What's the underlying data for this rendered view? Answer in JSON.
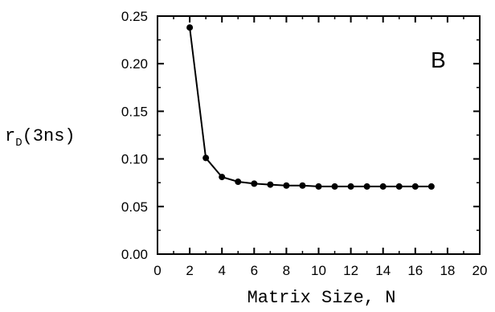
{
  "chart_data": {
    "type": "line",
    "title": "",
    "panel_label": "B",
    "xlabel": "Matrix Size, N",
    "ylabel_main": "r",
    "ylabel_sub": "D",
    "ylabel_rest": "(3ns)",
    "xlim": [
      0,
      20
    ],
    "ylim": [
      0,
      0.25
    ],
    "xticks": [
      0,
      2,
      4,
      6,
      8,
      10,
      12,
      14,
      16,
      18,
      20
    ],
    "yticks": [
      "0.00",
      "0.05",
      "0.10",
      "0.15",
      "0.20",
      "0.25"
    ],
    "grid": false,
    "x": [
      2,
      3,
      4,
      5,
      6,
      7,
      8,
      9,
      10,
      11,
      12,
      13,
      14,
      15,
      16,
      17
    ],
    "y": [
      0.238,
      0.101,
      0.081,
      0.076,
      0.074,
      0.073,
      0.072,
      0.072,
      0.071,
      0.071,
      0.071,
      0.071,
      0.071,
      0.071,
      0.071,
      0.071
    ],
    "colors": {
      "line": "#000000",
      "marker": "#000000"
    }
  }
}
